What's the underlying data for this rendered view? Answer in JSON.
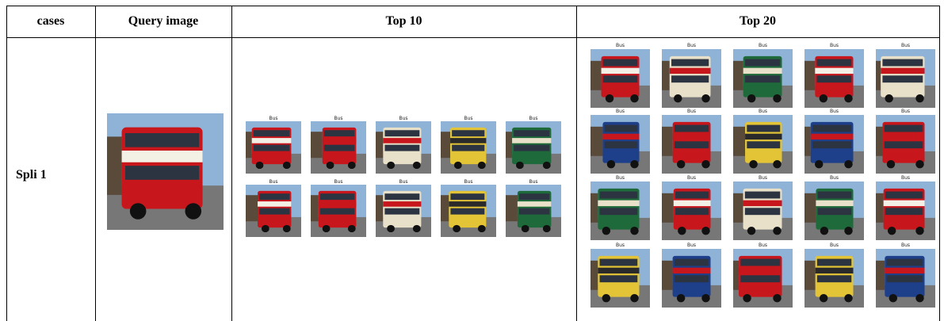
{
  "table": {
    "header": [
      "cases",
      "Query image",
      "Top 10",
      "Top 20"
    ],
    "rows": [
      {
        "case": "Spli 1",
        "top10": [
          "Bus",
          "Bus",
          "Bus",
          "Bus",
          "Bus",
          "Bus",
          "Bus",
          "Bus",
          "Bus",
          "Bus"
        ],
        "top20": [
          "Bus",
          "Bus",
          "Bus",
          "Bus",
          "Bus",
          "Bus",
          "Bus",
          "Bus",
          "Bus",
          "Bus",
          "Bus",
          "Bus",
          "Bus",
          "Bus",
          "Bus",
          "Bus",
          "Bus",
          "Bus",
          "Bus",
          "Bus"
        ]
      }
    ]
  }
}
